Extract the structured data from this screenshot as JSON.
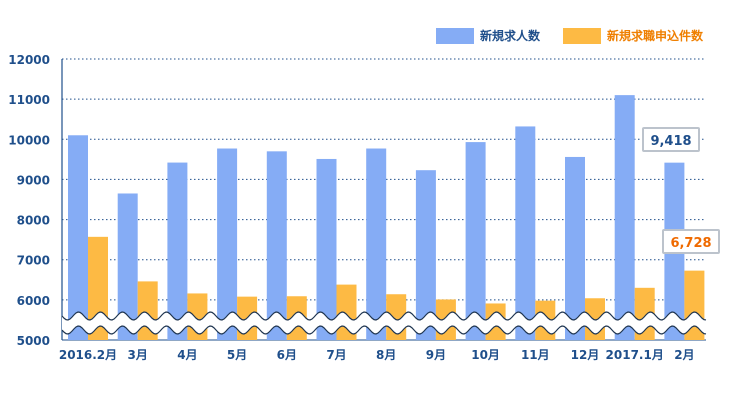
{
  "chart_data": {
    "type": "bar",
    "categories": [
      "2016.2月",
      "3月",
      "4月",
      "5月",
      "6月",
      "7月",
      "8月",
      "9月",
      "10月",
      "11月",
      "12月",
      "2017.1月",
      "2月"
    ],
    "series": [
      {
        "name": "新規求人数",
        "color": "#85acf5",
        "values": [
          10100,
          8650,
          9420,
          9770,
          9700,
          9510,
          9770,
          9230,
          9930,
          10320,
          9560,
          11100,
          9418
        ]
      },
      {
        "name": "新規求職申込件数",
        "color": "#fdba44",
        "values": [
          7570,
          6460,
          6160,
          6080,
          6090,
          6380,
          6140,
          6010,
          5910,
          5980,
          6040,
          6300,
          6728
        ]
      }
    ],
    "yticks": [
      5000,
      6000,
      7000,
      8000,
      9000,
      10000,
      11000,
      12000
    ],
    "ylim": [
      5000,
      12000
    ],
    "axis_break": true,
    "grid": "dotted horizontal",
    "legend_position": "top-right",
    "callouts": [
      {
        "series": "新規求人数",
        "category": "2月",
        "label": "9,418"
      },
      {
        "series": "新規求職申込件数",
        "category": "2月",
        "label": "6,728"
      }
    ],
    "colors": {
      "axis_text": "#1f4f8b",
      "gridline": "#1f4f8b",
      "callout_blue": "#1f4f8b",
      "callout_orange": "#ef6a00",
      "legend_blue_text": "#1f4f8b",
      "legend_orange_text": "#ef7f00"
    }
  }
}
